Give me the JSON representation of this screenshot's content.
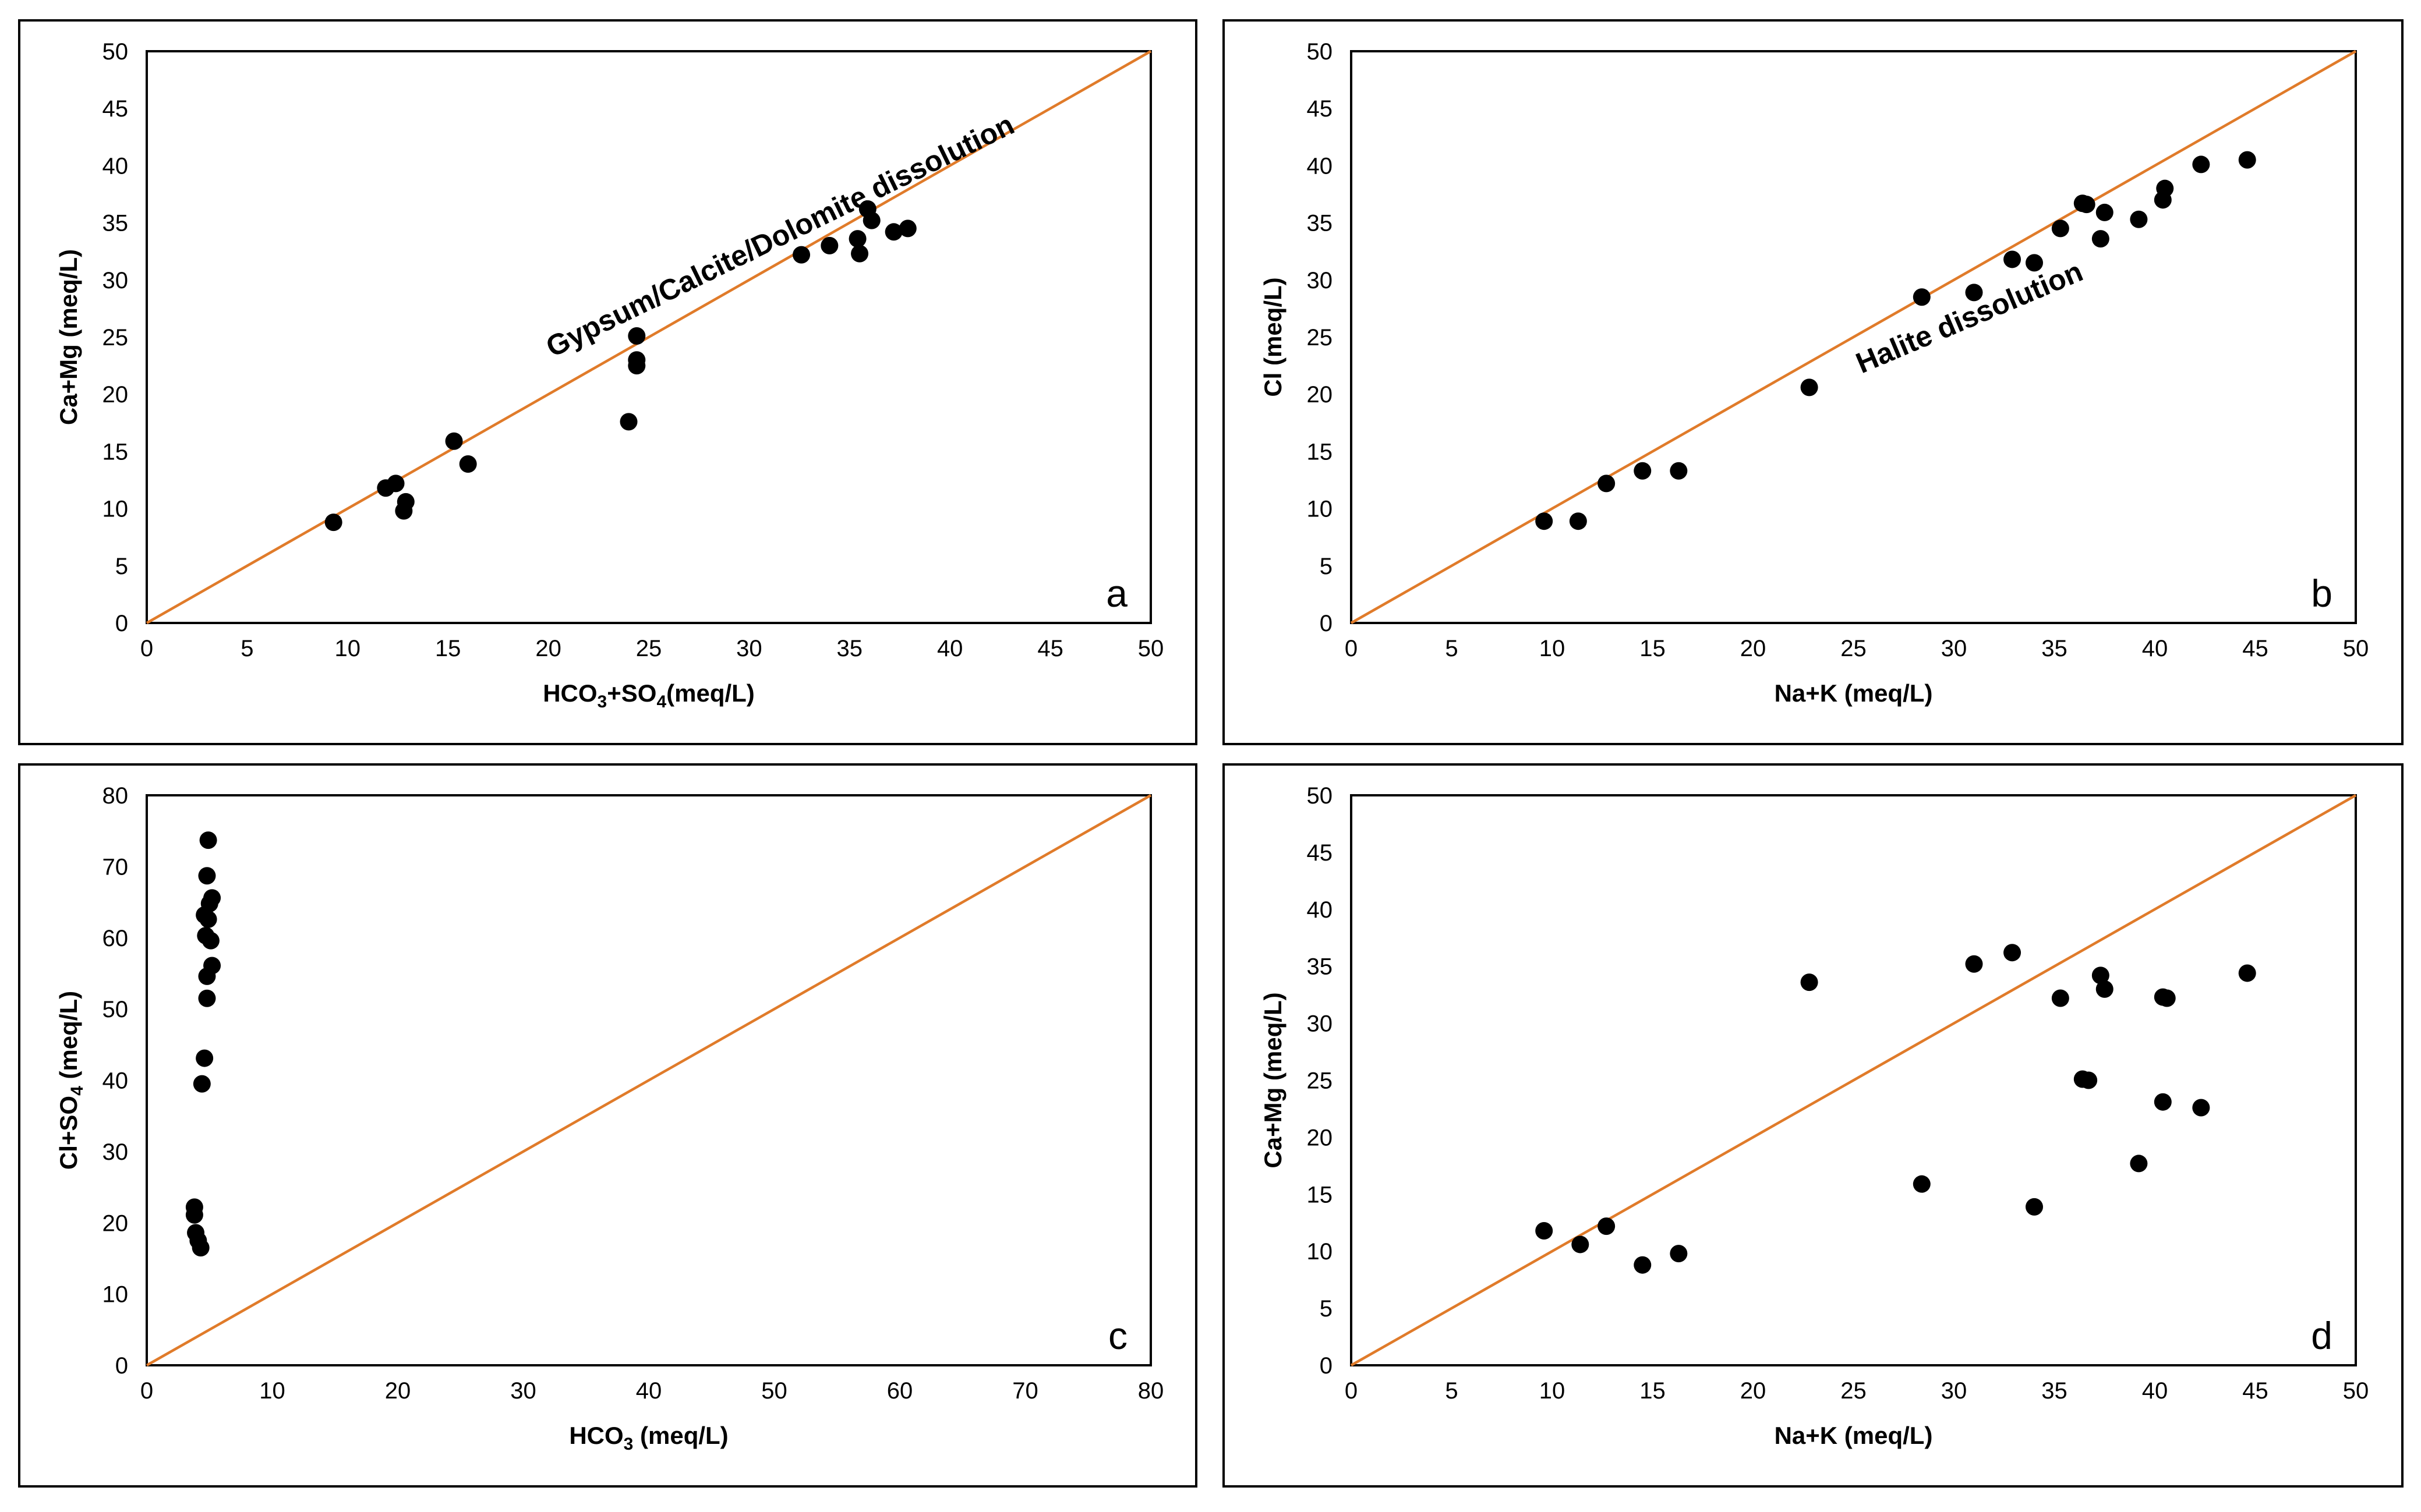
{
  "chart_data": [
    {
      "type": "scatter",
      "panel_letter": "a",
      "xlabel": {
        "main": "HCO",
        "sub1": "3",
        "mid": "+SO",
        "sub2": "4",
        "end": "(meq/L)"
      },
      "ylabel": "Ca+Mg (meq/L)",
      "xlim": [
        0,
        50
      ],
      "ylim": [
        0,
        50
      ],
      "xticks": [
        0,
        5,
        10,
        15,
        20,
        25,
        30,
        35,
        40,
        45,
        50
      ],
      "yticks": [
        0,
        5,
        10,
        15,
        20,
        25,
        30,
        35,
        40,
        45,
        50
      ],
      "reference_line": "1:1",
      "annotation": "Gypsum/Calcite/Dolomite dissolution",
      "points": [
        {
          "x": 9.3,
          "y": 8.8
        },
        {
          "x": 11.9,
          "y": 11.8
        },
        {
          "x": 12.4,
          "y": 12.2
        },
        {
          "x": 12.9,
          "y": 10.6
        },
        {
          "x": 12.8,
          "y": 9.8
        },
        {
          "x": 15.3,
          "y": 15.9
        },
        {
          "x": 16.0,
          "y": 13.9
        },
        {
          "x": 24.0,
          "y": 17.6
        },
        {
          "x": 24.4,
          "y": 25.1
        },
        {
          "x": 24.4,
          "y": 23.0
        },
        {
          "x": 24.4,
          "y": 22.5
        },
        {
          "x": 32.6,
          "y": 32.2
        },
        {
          "x": 34.0,
          "y": 33.0
        },
        {
          "x": 35.4,
          "y": 33.6
        },
        {
          "x": 35.5,
          "y": 32.3
        },
        {
          "x": 35.9,
          "y": 36.2
        },
        {
          "x": 36.1,
          "y": 35.2
        },
        {
          "x": 37.2,
          "y": 34.2
        },
        {
          "x": 37.9,
          "y": 34.5
        }
      ]
    },
    {
      "type": "scatter",
      "panel_letter": "b",
      "xlabel": {
        "main": "Na+K (meq/L)",
        "sub1": "",
        "mid": "",
        "sub2": "",
        "end": ""
      },
      "ylabel": "Cl (meq/L)",
      "xlim": [
        0,
        50
      ],
      "ylim": [
        0,
        50
      ],
      "xticks": [
        0,
        5,
        10,
        15,
        20,
        25,
        30,
        35,
        40,
        45,
        50
      ],
      "yticks": [
        0,
        5,
        10,
        15,
        20,
        25,
        30,
        35,
        40,
        45,
        50
      ],
      "reference_line": "1:1",
      "annotation": "Halite dissolution",
      "points": [
        {
          "x": 9.6,
          "y": 8.9
        },
        {
          "x": 11.3,
          "y": 8.9
        },
        {
          "x": 12.7,
          "y": 12.2
        },
        {
          "x": 14.5,
          "y": 13.3
        },
        {
          "x": 16.3,
          "y": 13.3
        },
        {
          "x": 22.8,
          "y": 20.6
        },
        {
          "x": 28.4,
          "y": 28.5
        },
        {
          "x": 31.0,
          "y": 28.9
        },
        {
          "x": 32.9,
          "y": 31.8
        },
        {
          "x": 34.0,
          "y": 31.5
        },
        {
          "x": 35.3,
          "y": 34.5
        },
        {
          "x": 36.4,
          "y": 36.7
        },
        {
          "x": 36.6,
          "y": 36.6
        },
        {
          "x": 37.3,
          "y": 33.6
        },
        {
          "x": 37.5,
          "y": 35.9
        },
        {
          "x": 39.2,
          "y": 35.3
        },
        {
          "x": 40.4,
          "y": 37.0
        },
        {
          "x": 40.5,
          "y": 38.0
        },
        {
          "x": 42.3,
          "y": 40.1
        },
        {
          "x": 44.6,
          "y": 40.5
        }
      ]
    },
    {
      "type": "scatter",
      "panel_letter": "c",
      "xlabel": {
        "main": "HCO",
        "sub1": "3",
        "mid": " (meq/L)",
        "sub2": "",
        "end": ""
      },
      "ylabel": "Cl+SO4 (meq/L)",
      "xlim": [
        0,
        80
      ],
      "ylim": [
        0,
        80
      ],
      "xticks": [
        0,
        10,
        20,
        30,
        40,
        50,
        60,
        70,
        80
      ],
      "yticks": [
        0,
        10,
        20,
        30,
        40,
        50,
        60,
        70,
        80
      ],
      "reference_line": "1:1",
      "annotation": "",
      "points": [
        {
          "x": 4.9,
          "y": 73.7
        },
        {
          "x": 4.8,
          "y": 68.7
        },
        {
          "x": 5.2,
          "y": 65.6
        },
        {
          "x": 5.0,
          "y": 64.8
        },
        {
          "x": 4.6,
          "y": 63.2
        },
        {
          "x": 4.9,
          "y": 62.6
        },
        {
          "x": 4.7,
          "y": 60.3
        },
        {
          "x": 5.1,
          "y": 59.6
        },
        {
          "x": 5.2,
          "y": 56.1
        },
        {
          "x": 4.8,
          "y": 54.6
        },
        {
          "x": 4.8,
          "y": 51.5
        },
        {
          "x": 4.6,
          "y": 43.1
        },
        {
          "x": 4.4,
          "y": 39.5
        },
        {
          "x": 3.8,
          "y": 22.2
        },
        {
          "x": 3.8,
          "y": 21.1
        },
        {
          "x": 3.9,
          "y": 18.6
        },
        {
          "x": 4.1,
          "y": 17.5
        },
        {
          "x": 4.3,
          "y": 16.5
        }
      ]
    },
    {
      "type": "scatter",
      "panel_letter": "d",
      "xlabel": {
        "main": "Na+K (meq/L)",
        "sub1": "",
        "mid": "",
        "sub2": "",
        "end": ""
      },
      "ylabel": "Ca+Mg (meq/L)",
      "xlim": [
        0,
        50
      ],
      "ylim": [
        0,
        50
      ],
      "xticks": [
        0,
        5,
        10,
        15,
        20,
        25,
        30,
        35,
        40,
        45,
        50
      ],
      "yticks": [
        0,
        5,
        10,
        15,
        20,
        25,
        30,
        35,
        40,
        45,
        50
      ],
      "reference_line": "1:1",
      "annotation": "",
      "points": [
        {
          "x": 9.6,
          "y": 11.8
        },
        {
          "x": 11.4,
          "y": 10.6
        },
        {
          "x": 12.7,
          "y": 12.2
        },
        {
          "x": 14.5,
          "y": 8.8
        },
        {
          "x": 16.3,
          "y": 9.8
        },
        {
          "x": 22.8,
          "y": 33.6
        },
        {
          "x": 28.4,
          "y": 15.9
        },
        {
          "x": 31.0,
          "y": 35.2
        },
        {
          "x": 32.9,
          "y": 36.2
        },
        {
          "x": 34.0,
          "y": 13.9
        },
        {
          "x": 35.3,
          "y": 32.2
        },
        {
          "x": 36.4,
          "y": 25.1
        },
        {
          "x": 36.7,
          "y": 25.0
        },
        {
          "x": 37.3,
          "y": 34.2
        },
        {
          "x": 37.5,
          "y": 33.0
        },
        {
          "x": 39.2,
          "y": 17.7
        },
        {
          "x": 40.4,
          "y": 23.1
        },
        {
          "x": 40.4,
          "y": 32.3
        },
        {
          "x": 40.6,
          "y": 32.2
        },
        {
          "x": 42.3,
          "y": 22.6
        },
        {
          "x": 44.6,
          "y": 34.4
        }
      ]
    }
  ],
  "colors": {
    "reference_line": "#e07b2a",
    "marker": "#000000",
    "frame": "#000000"
  }
}
